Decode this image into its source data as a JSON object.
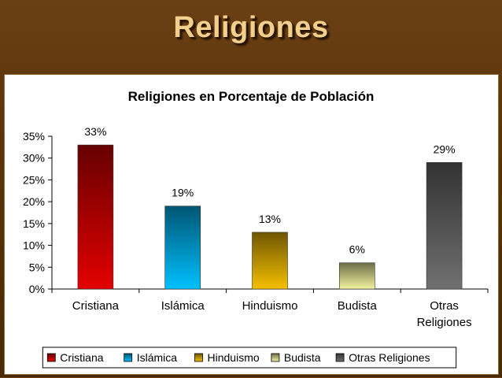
{
  "slide": {
    "title": "Religiones"
  },
  "colors": {
    "background": "#5a3309",
    "title": "#f2cf8c",
    "Cristiana": "#e30000",
    "Islámica": "#00c0ff",
    "Hinduismo": "#f5c000",
    "Budista": "#f3f3a0",
    "Otras Religiones": "#707070"
  },
  "chart_data": {
    "type": "bar",
    "title": "Religiones en Porcentaje de Población",
    "categories": [
      "Cristiana",
      "Islámica",
      "Hinduismo",
      "Budista",
      "Otras Religiones"
    ],
    "values": [
      33,
      19,
      13,
      6,
      29
    ],
    "data_labels": [
      "33%",
      "19%",
      "13%",
      "6%",
      "29%"
    ],
    "yticks": [
      "0%",
      "5%",
      "10%",
      "15%",
      "20%",
      "25%",
      "30%",
      "35%"
    ],
    "ylim": [
      0,
      35
    ],
    "grid": false,
    "legend": {
      "position": "bottom",
      "entries": [
        "Cristiana",
        "Islámica",
        "Hinduismo",
        "Budista",
        "Otras Religiones"
      ]
    }
  }
}
